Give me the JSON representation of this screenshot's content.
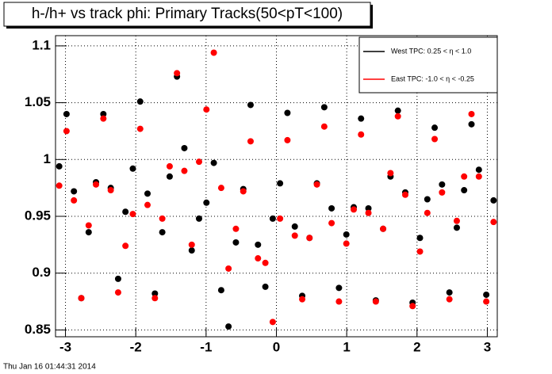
{
  "chart_data": {
    "type": "scatter",
    "title": "h-/h+ vs track phi: Primary Tracks(50<pT<100)",
    "footer": "Thu Jan 16 01:44:31 2014",
    "x": [
      -3.089,
      -2.985,
      -2.88,
      -2.775,
      -2.67,
      -2.566,
      -2.461,
      -2.356,
      -2.251,
      -2.147,
      -2.042,
      -1.937,
      -1.833,
      -1.728,
      -1.623,
      -1.518,
      -1.414,
      -1.309,
      -1.204,
      -1.1,
      -0.995,
      -0.89,
      -0.785,
      -0.681,
      -0.576,
      -0.471,
      -0.367,
      -0.262,
      -0.157,
      -0.052,
      0.052,
      0.157,
      0.262,
      0.367,
      0.471,
      0.576,
      0.681,
      0.785,
      0.89,
      0.995,
      1.1,
      1.204,
      1.309,
      1.414,
      1.518,
      1.623,
      1.728,
      1.833,
      1.937,
      2.042,
      2.147,
      2.251,
      2.356,
      2.461,
      2.566,
      2.67,
      2.775,
      2.88,
      2.985,
      3.089
    ],
    "series": [
      {
        "name": "West TPC: 0.25 < η < 1.0",
        "color": "#000000",
        "values": [
          0.994,
          1.04,
          0.972,
          0.878,
          0.936,
          0.98,
          1.04,
          0.975,
          0.895,
          0.954,
          0.992,
          1.051,
          0.97,
          0.882,
          0.936,
          0.985,
          1.073,
          1.01,
          0.92,
          0.948,
          0.962,
          0.997,
          0.885,
          0.853,
          0.927,
          0.974,
          1.048,
          0.925,
          0.888,
          0.948,
          0.979,
          1.041,
          0.941,
          0.88,
          0.931,
          0.979,
          1.046,
          0.957,
          0.887,
          0.934,
          0.958,
          1.036,
          0.957,
          0.876,
          0.939,
          0.985,
          1.043,
          0.971,
          0.874,
          0.931,
          0.965,
          1.028,
          0.978,
          0.883,
          0.94,
          0.973,
          1.031,
          0.991,
          0.881,
          0.964
        ]
      },
      {
        "name": "East TPC: -1.0 < η < -0.25",
        "color": "#ff0000",
        "values": [
          0.977,
          1.025,
          0.964,
          0.878,
          0.942,
          0.978,
          1.036,
          0.973,
          0.883,
          0.924,
          0.952,
          1.027,
          0.96,
          0.878,
          0.948,
          0.994,
          1.076,
          0.99,
          0.925,
          0.998,
          1.044,
          1.094,
          0.975,
          0.904,
          0.939,
          0.972,
          1.016,
          0.913,
          0.909,
          0.857,
          0.948,
          1.017,
          0.933,
          0.877,
          0.931,
          0.978,
          1.029,
          0.944,
          0.875,
          0.926,
          0.956,
          1.022,
          0.953,
          0.875,
          0.939,
          0.988,
          1.038,
          0.969,
          0.871,
          0.919,
          0.953,
          1.018,
          0.971,
          0.877,
          0.946,
          0.985,
          1.04,
          0.985,
          0.875,
          0.945
        ]
      }
    ],
    "xlim": [
      -3.1416,
      3.1416
    ],
    "ylim": [
      0.844,
      1.109
    ],
    "xticks": [
      -3,
      -2,
      -1,
      0,
      1,
      2,
      3
    ],
    "yticks": [
      0.85,
      0.9,
      0.95,
      1,
      1.05,
      1.1
    ],
    "grid": true,
    "legend": "upper right"
  }
}
